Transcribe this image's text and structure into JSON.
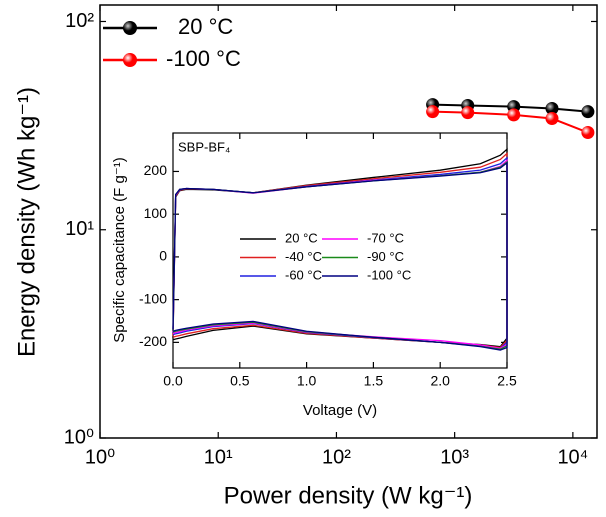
{
  "chart_data": [
    {
      "type": "line",
      "log_x": true,
      "log_y": true,
      "xlabel": "Power density (W kg⁻¹)",
      "ylabel": "Energy density (Wh kg⁻¹)",
      "xlim": [
        1,
        16000
      ],
      "ylim": [
        1,
        120
      ],
      "xticks": [
        {
          "value": 1,
          "label": "10⁰"
        },
        {
          "value": 10,
          "label": "10¹"
        },
        {
          "value": 100,
          "label": "10²"
        },
        {
          "value": 1000,
          "label": "10³"
        },
        {
          "value": 10000,
          "label": "10⁴"
        }
      ],
      "yticks": [
        {
          "value": 1,
          "label": "10⁰"
        },
        {
          "value": 10,
          "label": "10¹"
        },
        {
          "value": 100,
          "label": "10²"
        }
      ],
      "legend": "top-left",
      "series": [
        {
          "name": "20 °C",
          "color": "#000000",
          "x": [
            651,
            1290,
            3160,
            6660,
            13400
          ],
          "values": [
            39.9,
            39.5,
            39.0,
            38.2,
            36.9
          ]
        },
        {
          "name": "-100 °C",
          "color": "#ff0000",
          "x": [
            651,
            1290,
            3160,
            6660,
            13400
          ],
          "values": [
            36.9,
            36.5,
            35.6,
            34.2,
            29.3
          ]
        }
      ]
    },
    {
      "type": "line",
      "label": "SBP-BF₄",
      "xlabel": "Voltage (V)",
      "ylabel": "Specific capacitance (F g⁻¹)",
      "xlim": [
        0,
        2.5
      ],
      "ylim": [
        -260,
        290
      ],
      "xticks": [
        {
          "value": 0,
          "label": "0.0"
        },
        {
          "value": 0.5,
          "label": "0.5"
        },
        {
          "value": 1,
          "label": "1.0"
        },
        {
          "value": 1.5,
          "label": "1.5"
        },
        {
          "value": 2,
          "label": "2.0"
        },
        {
          "value": 2.5,
          "label": "2.5"
        }
      ],
      "yticks": [
        -200,
        -100,
        0,
        100,
        200
      ],
      "x": [
        0,
        0.02,
        0.05,
        0.1,
        0.3,
        0.6,
        1.0,
        1.5,
        2.0,
        2.3,
        2.45,
        2.5,
        2.5,
        2.45,
        2.3,
        2.0,
        1.5,
        1.0,
        0.6,
        0.3,
        0.1,
        0.05,
        0.02,
        0
      ],
      "series": [
        {
          "name": "20 °C",
          "color": "#000000",
          "values": [
            -190,
            140,
            155,
            158,
            157,
            150,
            168,
            186,
            203,
            218,
            238,
            252,
            -190,
            -210,
            -205,
            -200,
            -190,
            -180,
            -162,
            -172,
            -186,
            -190,
            -192,
            -194
          ]
        },
        {
          "name": "-40 °C",
          "color": "#e02020",
          "values": [
            -185,
            142,
            156,
            159,
            158,
            150,
            167,
            183,
            198,
            210,
            228,
            242,
            -195,
            -212,
            -206,
            -200,
            -190,
            -179,
            -160,
            -168,
            -180,
            -184,
            -186,
            -188
          ]
        },
        {
          "name": "-60 °C",
          "color": "#2020e0",
          "values": [
            -178,
            144,
            157,
            160,
            158,
            150,
            165,
            180,
            193,
            203,
            218,
            232,
            -200,
            -214,
            -208,
            -200,
            -189,
            -177,
            -156,
            -163,
            -174,
            -178,
            -180,
            -182
          ]
        },
        {
          "name": "-70 °C",
          "color": "#ff00ff",
          "values": [
            -176,
            145,
            158,
            160,
            158,
            149,
            164,
            179,
            190,
            198,
            212,
            226,
            -205,
            -214,
            -206,
            -196,
            -187,
            -176,
            -155,
            -161,
            -171,
            -175,
            -177,
            -179
          ]
        },
        {
          "name": "-90 °C",
          "color": "#1a8a1a",
          "values": [
            -173,
            146,
            158,
            160,
            158,
            150,
            164,
            178,
            190,
            198,
            210,
            222,
            -208,
            -216,
            -209,
            -200,
            -188,
            -175,
            -153,
            -159,
            -169,
            -172,
            -174,
            -176
          ]
        },
        {
          "name": "-100 °C",
          "color": "#000080",
          "values": [
            -170,
            146,
            158,
            160,
            158,
            150,
            164,
            178,
            189,
            197,
            208,
            220,
            -212,
            -218,
            -210,
            -200,
            -188,
            -174,
            -151,
            -157,
            -167,
            -170,
            -172,
            -174
          ]
        }
      ]
    }
  ]
}
